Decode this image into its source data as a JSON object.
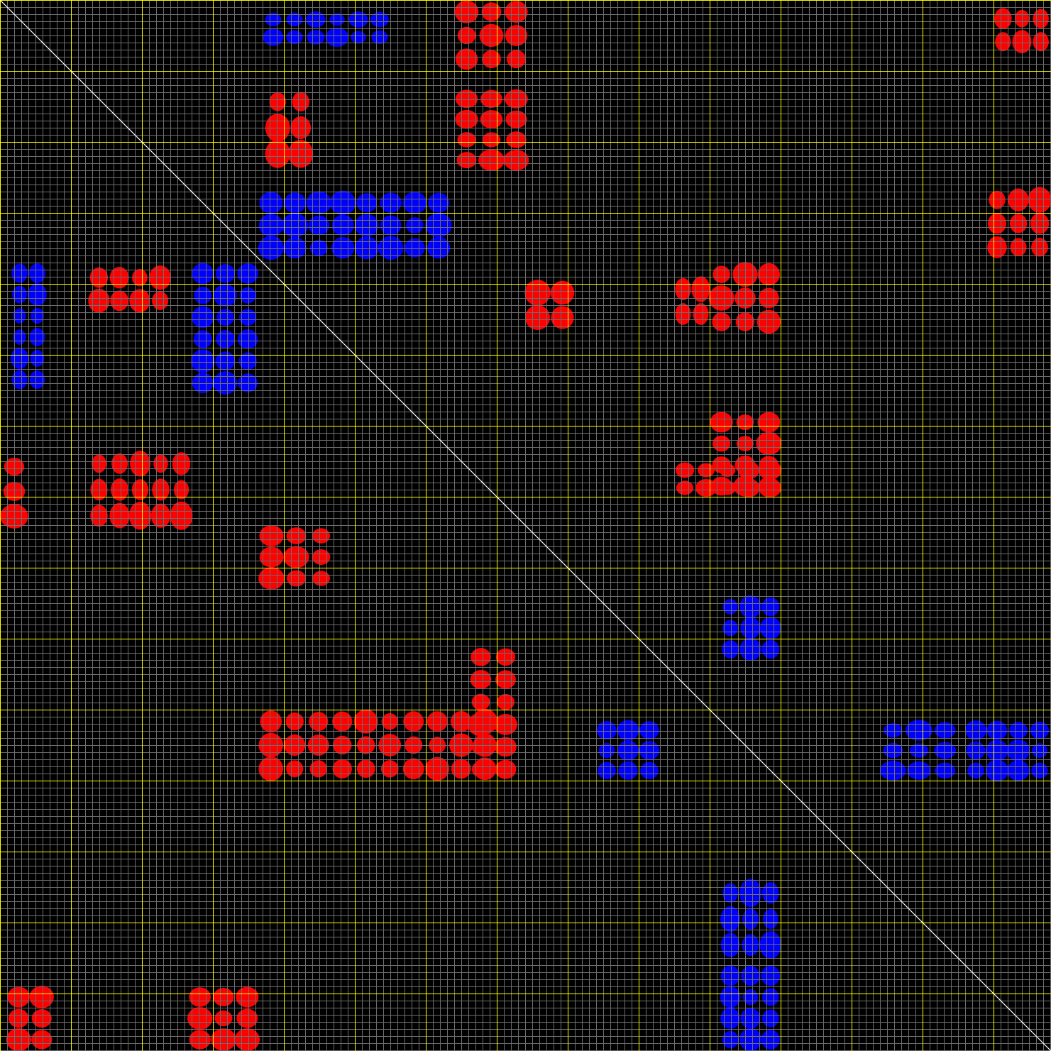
{
  "chart_data": {
    "type": "heatmap",
    "title": "",
    "xlabel": "",
    "ylabel": "",
    "xlim": [
      0,
      148
    ],
    "ylim": [
      0,
      148
    ],
    "grid": {
      "minor_step": 1,
      "major_step": 10,
      "on": true
    },
    "diagonal": true,
    "colors": {
      "background": "#000000",
      "minor_grid": "#6e6e6e",
      "major_grid": "#ffff00",
      "diagonal": "#ffffff",
      "positive": "#ff0000",
      "negative": "#0000ff"
    },
    "regions": [
      {
        "sign": "positive",
        "x": [
          64,
          74.5
        ],
        "y": [
          12.5,
          24
        ]
      },
      {
        "sign": "positive",
        "x": [
          64,
          74.5
        ],
        "y": [
          0,
          10
        ]
      },
      {
        "sign": "positive",
        "x": [
          37.5,
          44
        ],
        "y": [
          12.5,
          23.5
        ]
      },
      {
        "sign": "positive",
        "x": [
          139,
          148
        ],
        "y": [
          26.5,
          36.5
        ]
      },
      {
        "sign": "positive",
        "x": [
          140,
          148
        ],
        "y": [
          1,
          7.5
        ]
      },
      {
        "sign": "positive",
        "x": [
          100,
          110
        ],
        "y": [
          37,
          47
        ]
      },
      {
        "sign": "positive",
        "x": [
          100,
          110
        ],
        "y": [
          58,
          70
        ]
      },
      {
        "sign": "positive",
        "x": [
          95,
          100
        ],
        "y": [
          39,
          46
        ]
      },
      {
        "sign": "positive",
        "x": [
          95,
          110
        ],
        "y": [
          65,
          70
        ]
      },
      {
        "sign": "positive",
        "x": [
          74,
          81
        ],
        "y": [
          39.5,
          46.5
        ]
      },
      {
        "sign": "positive",
        "x": [
          12.5,
          27
        ],
        "y": [
          63.5,
          74.5
        ]
      },
      {
        "sign": "positive",
        "x": [
          12.5,
          24
        ],
        "y": [
          37.5,
          44
        ]
      },
      {
        "sign": "positive",
        "x": [
          0,
          4
        ],
        "y": [
          64,
          74.5
        ]
      },
      {
        "sign": "positive",
        "x": [
          36.5,
          47
        ],
        "y": [
          74,
          83
        ]
      },
      {
        "sign": "positive",
        "x": [
          36.5,
          70
        ],
        "y": [
          100,
          110
        ]
      },
      {
        "sign": "positive",
        "x": [
          66,
          73
        ],
        "y": [
          91,
          110
        ]
      },
      {
        "sign": "positive",
        "x": [
          26.5,
          36.5
        ],
        "y": [
          139,
          148
        ]
      },
      {
        "sign": "positive",
        "x": [
          1,
          7.5
        ],
        "y": [
          139,
          148
        ]
      },
      {
        "sign": "negative",
        "x": [
          36.5,
          63.5
        ],
        "y": [
          27,
          36.5
        ]
      },
      {
        "sign": "negative",
        "x": [
          37,
          55
        ],
        "y": [
          1.5,
          6.5
        ]
      },
      {
        "sign": "negative",
        "x": [
          27,
          36.5
        ],
        "y": [
          37,
          55.5
        ]
      },
      {
        "sign": "negative",
        "x": [
          1.5,
          6.5
        ],
        "y": [
          37,
          55
        ]
      },
      {
        "sign": "negative",
        "x": [
          124,
          135
        ],
        "y": [
          101.5,
          110
        ]
      },
      {
        "sign": "negative",
        "x": [
          136,
          148
        ],
        "y": [
          101.5,
          110
        ]
      },
      {
        "sign": "negative",
        "x": [
          101.5,
          110
        ],
        "y": [
          124,
          135
        ]
      },
      {
        "sign": "negative",
        "x": [
          101.5,
          110
        ],
        "y": [
          136,
          148
        ]
      },
      {
        "sign": "negative",
        "x": [
          84,
          93
        ],
        "y": [
          101.5,
          110
        ]
      },
      {
        "sign": "negative",
        "x": [
          101.5,
          110
        ],
        "y": [
          84,
          93
        ]
      }
    ]
  }
}
